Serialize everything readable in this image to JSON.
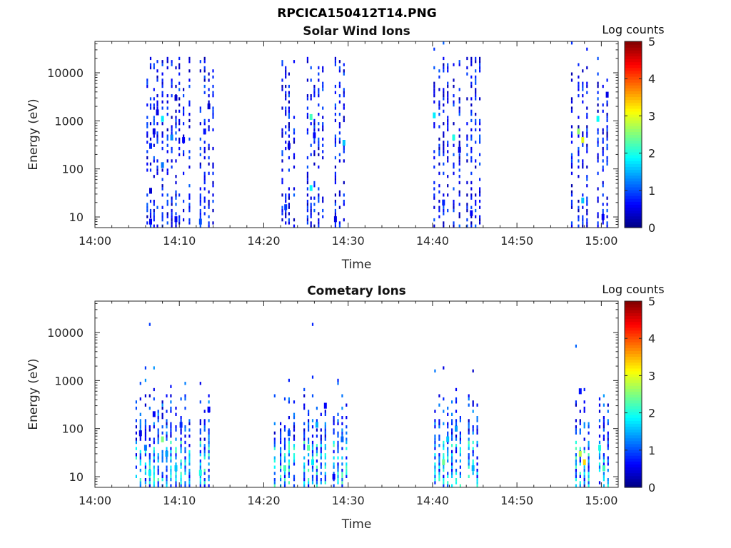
{
  "figure": {
    "title": "RPCICA150412T14.PNG"
  },
  "colorbar": {
    "ticks": [
      0,
      1,
      2,
      3,
      4,
      5
    ]
  },
  "chart_data": [
    {
      "type": "heatmap",
      "title": "Solar Wind Ions",
      "xlabel": "Time",
      "ylabel": "Energy (eV)",
      "colorbar_label": "Log counts",
      "x_range": [
        "14:00",
        "15:02"
      ],
      "x_ticks": [
        "14:00",
        "14:10",
        "14:20",
        "14:30",
        "14:40",
        "14:50",
        "15:00"
      ],
      "y_scale": "log",
      "y_range": [
        6,
        45000
      ],
      "y_ticks": [
        10,
        100,
        1000,
        10000
      ],
      "y_tick_labels": [
        "10",
        "100",
        "1000",
        "10000"
      ],
      "z_range": [
        0,
        5
      ],
      "time_bins_min": [
        6.2,
        6.6,
        7.0,
        7.4,
        8.0,
        8.6,
        9.1,
        9.6,
        10.0,
        10.5,
        11.2,
        12.5,
        13.0,
        13.5,
        14.0,
        22.2,
        22.6,
        23.0,
        23.6,
        25.2,
        25.6,
        26.0,
        26.5,
        27.0,
        28.5,
        29.0,
        29.5,
        40.2,
        40.8,
        41.3,
        41.8,
        42.5,
        43.2,
        44.1,
        44.6,
        45.1,
        45.6,
        56.5,
        57.3,
        57.8,
        58.3,
        59.6,
        60.2,
        60.7
      ],
      "cells": [
        {
          "t": 6.6,
          "e": 8,
          "v": 0.6
        },
        {
          "t": 6.6,
          "e": 35,
          "v": 0.4
        },
        {
          "t": 6.6,
          "e": 300,
          "v": 0.8
        },
        {
          "t": 7.0,
          "e": 600,
          "v": 0.5
        },
        {
          "t": 7.4,
          "e": 1500,
          "v": 0.5
        },
        {
          "t": 8.0,
          "e": 1100,
          "v": 1.8
        },
        {
          "t": 8.0,
          "e": 120,
          "v": 1.2
        },
        {
          "t": 9.1,
          "e": 450,
          "v": 1.3
        },
        {
          "t": 9.6,
          "e": 9,
          "v": 0.6
        },
        {
          "t": 9.6,
          "e": 3000,
          "v": 0.4
        },
        {
          "t": 10.5,
          "e": 400,
          "v": 0.6
        },
        {
          "t": 12.5,
          "e": 8,
          "v": 1.0
        },
        {
          "t": 13.0,
          "e": 600,
          "v": 0.7
        },
        {
          "t": 13.5,
          "e": 2000,
          "v": 0.4
        },
        {
          "t": 22.6,
          "e": 16,
          "v": 0.9
        },
        {
          "t": 23.0,
          "e": 300,
          "v": 0.5
        },
        {
          "t": 25.6,
          "e": 1200,
          "v": 2.2
        },
        {
          "t": 25.6,
          "e": 40,
          "v": 1.9
        },
        {
          "t": 26.0,
          "e": 500,
          "v": 0.6
        },
        {
          "t": 28.5,
          "e": 9,
          "v": 0.5
        },
        {
          "t": 29.5,
          "e": 350,
          "v": 1.6
        },
        {
          "t": 40.2,
          "e": 1300,
          "v": 1.8
        },
        {
          "t": 41.3,
          "e": 20,
          "v": 0.8
        },
        {
          "t": 42.5,
          "e": 450,
          "v": 2.0
        },
        {
          "t": 43.2,
          "e": 250,
          "v": 0.5
        },
        {
          "t": 44.6,
          "e": 12,
          "v": 0.6
        },
        {
          "t": 57.3,
          "e": 600,
          "v": 2.6
        },
        {
          "t": 57.8,
          "e": 400,
          "v": 3.0
        },
        {
          "t": 57.8,
          "e": 22,
          "v": 1.6
        },
        {
          "t": 59.6,
          "e": 1100,
          "v": 1.9
        },
        {
          "t": 60.2,
          "e": 10,
          "v": 0.6
        },
        {
          "t": 60.7,
          "e": 3500,
          "v": 0.5
        }
      ]
    },
    {
      "type": "heatmap",
      "title": "Cometary Ions",
      "xlabel": "Time",
      "ylabel": "Energy (eV)",
      "colorbar_label": "Log counts",
      "x_range": [
        "14:00",
        "15:02"
      ],
      "x_ticks": [
        "14:00",
        "14:10",
        "14:20",
        "14:30",
        "14:40",
        "14:50",
        "15:00"
      ],
      "y_scale": "log",
      "y_range": [
        6,
        45000
      ],
      "y_ticks": [
        10,
        100,
        1000,
        10000
      ],
      "y_tick_labels": [
        "10",
        "100",
        "1000",
        "10000"
      ],
      "z_range": [
        0,
        5
      ],
      "time_bins_min": [
        4.9,
        5.4,
        6.0,
        6.5,
        7.0,
        7.5,
        8.0,
        8.5,
        9.0,
        9.6,
        10.2,
        10.7,
        11.2,
        12.5,
        13.0,
        13.5,
        21.3,
        22.0,
        22.5,
        23.0,
        23.6,
        24.8,
        25.3,
        25.8,
        26.3,
        26.8,
        27.3,
        28.3,
        28.8,
        29.3,
        29.8,
        40.3,
        40.8,
        41.3,
        41.8,
        42.3,
        42.8,
        43.3,
        44.3,
        44.8,
        45.3,
        57.0,
        57.5,
        58.0,
        58.5,
        59.8,
        60.3,
        60.8
      ],
      "cells": [
        {
          "t": 5.4,
          "e": 80,
          "v": 0.5
        },
        {
          "t": 6.0,
          "e": 40,
          "v": 1.2
        },
        {
          "t": 6.5,
          "e": 12,
          "v": 1.8
        },
        {
          "t": 7.0,
          "e": 200,
          "v": 0.6
        },
        {
          "t": 8.0,
          "e": 60,
          "v": 2.5
        },
        {
          "t": 8.5,
          "e": 30,
          "v": 1.4
        },
        {
          "t": 9.6,
          "e": 15,
          "v": 1.6
        },
        {
          "t": 10.2,
          "e": 120,
          "v": 0.8
        },
        {
          "t": 12.5,
          "e": 12,
          "v": 2.0
        },
        {
          "t": 13.5,
          "e": 250,
          "v": 0.6
        },
        {
          "t": 22.5,
          "e": 15,
          "v": 2.2
        },
        {
          "t": 23.0,
          "e": 80,
          "v": 1.0
        },
        {
          "t": 25.3,
          "e": 40,
          "v": 2.3
        },
        {
          "t": 25.8,
          "e": 20,
          "v": 1.8
        },
        {
          "t": 26.3,
          "e": 120,
          "v": 1.5
        },
        {
          "t": 27.3,
          "e": 300,
          "v": 0.6
        },
        {
          "t": 28.3,
          "e": 10,
          "v": 0.6
        },
        {
          "t": 29.3,
          "e": 60,
          "v": 1.1
        },
        {
          "t": 41.3,
          "e": 20,
          "v": 2.4
        },
        {
          "t": 41.8,
          "e": 60,
          "v": 1.6
        },
        {
          "t": 42.8,
          "e": 100,
          "v": 1.4
        },
        {
          "t": 44.8,
          "e": 15,
          "v": 1.5
        },
        {
          "t": 57.5,
          "e": 30,
          "v": 2.8
        },
        {
          "t": 58.0,
          "e": 20,
          "v": 3.3
        },
        {
          "t": 57.5,
          "e": 600,
          "v": 0.7
        },
        {
          "t": 59.8,
          "e": 40,
          "v": 2.0
        },
        {
          "t": 60.3,
          "e": 15,
          "v": 2.2
        }
      ]
    }
  ]
}
